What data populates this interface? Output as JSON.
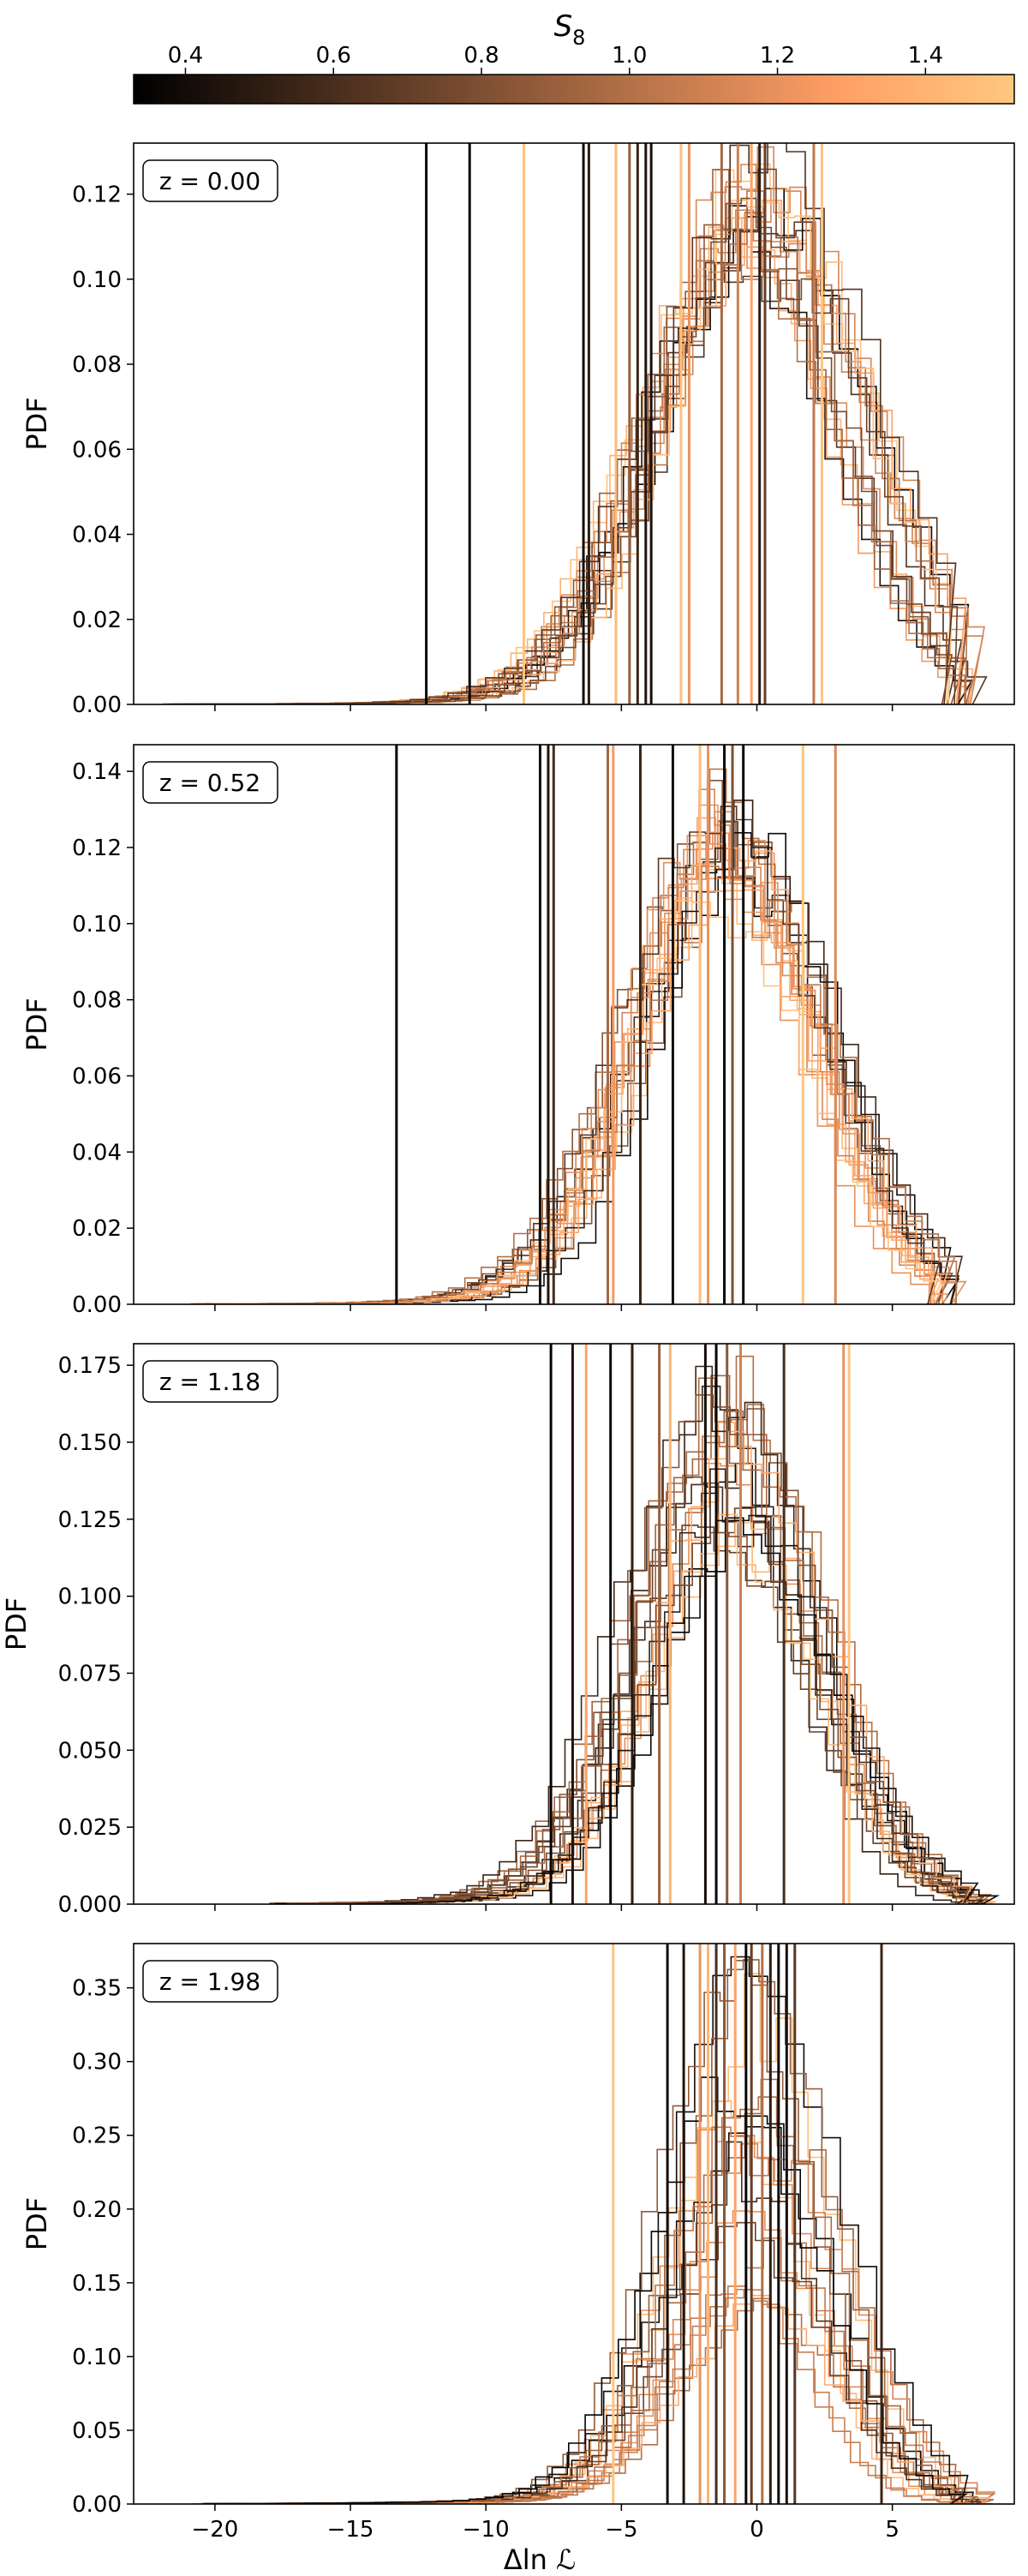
{
  "colorbar": {
    "label": "S",
    "label_subscript": "8",
    "range": [
      0.33,
      1.52
    ],
    "ticks": [
      0.4,
      0.6,
      0.8,
      1.0,
      1.2,
      1.4
    ],
    "tick_labels": [
      "0.4",
      "0.6",
      "0.8",
      "1.0",
      "1.2",
      "1.4"
    ],
    "colormap": "copper"
  },
  "chart_data": [
    {
      "type": "histogram",
      "annotation": "z = 0.00",
      "ylabel": "PDF",
      "xlabel": "",
      "xlim": [
        -23,
        9.5
      ],
      "ylim": [
        0,
        0.132
      ],
      "yticks": [
        0.0,
        0.02,
        0.04,
        0.06,
        0.08,
        0.1,
        0.12
      ],
      "ytick_labels": [
        "0.00",
        "0.02",
        "0.04",
        "0.06",
        "0.08",
        "0.10",
        "0.12"
      ],
      "n_histograms": 20,
      "histogram_center": 0.0,
      "histogram_sigma": 3.5,
      "histogram_peak_range": [
        0.1,
        0.125
      ],
      "left_tail_extent": -22,
      "right_extent": 8,
      "vertical_lines": [
        {
          "x": -12.2,
          "s8": 0.35
        },
        {
          "x": -10.6,
          "s8": 0.38
        },
        {
          "x": -8.6,
          "s8": 1.5
        },
        {
          "x": -6.4,
          "s8": 0.4
        },
        {
          "x": -6.2,
          "s8": 0.5
        },
        {
          "x": -5.2,
          "s8": 1.45
        },
        {
          "x": -4.7,
          "s8": 0.9
        },
        {
          "x": -4.4,
          "s8": 0.55
        },
        {
          "x": -4.1,
          "s8": 0.45
        },
        {
          "x": -3.9,
          "s8": 0.42
        },
        {
          "x": -2.8,
          "s8": 1.48
        },
        {
          "x": -2.5,
          "s8": 1.2
        },
        {
          "x": -1.3,
          "s8": 0.95
        },
        {
          "x": -0.7,
          "s8": 1.1
        },
        {
          "x": -0.2,
          "s8": 1.3
        },
        {
          "x": 0.1,
          "s8": 0.5
        },
        {
          "x": 0.3,
          "s8": 0.7
        },
        {
          "x": 2.1,
          "s8": 1.05
        },
        {
          "x": 2.4,
          "s8": 1.5
        }
      ]
    },
    {
      "type": "histogram",
      "annotation": "z = 0.52",
      "ylabel": "PDF",
      "xlabel": "",
      "xlim": [
        -23,
        9.5
      ],
      "ylim": [
        0,
        0.147
      ],
      "yticks": [
        0.0,
        0.02,
        0.04,
        0.06,
        0.08,
        0.1,
        0.12,
        0.14
      ],
      "ytick_labels": [
        "0.00",
        "0.02",
        "0.04",
        "0.06",
        "0.08",
        "0.10",
        "0.12",
        "0.14"
      ],
      "n_histograms": 20,
      "histogram_center": -0.8,
      "histogram_sigma": 3.3,
      "histogram_peak_range": [
        0.105,
        0.128
      ],
      "left_tail_extent": -21,
      "right_extent": 7.5,
      "vertical_lines": [
        {
          "x": -13.3,
          "s8": 0.35
        },
        {
          "x": -8.0,
          "s8": 0.42
        },
        {
          "x": -7.7,
          "s8": 0.45
        },
        {
          "x": -7.5,
          "s8": 0.6
        },
        {
          "x": -5.5,
          "s8": 0.95
        },
        {
          "x": -5.3,
          "s8": 1.25
        },
        {
          "x": -4.3,
          "s8": 0.55
        },
        {
          "x": -3.1,
          "s8": 0.4
        },
        {
          "x": -2.1,
          "s8": 1.45
        },
        {
          "x": -1.8,
          "s8": 1.2
        },
        {
          "x": -1.2,
          "s8": 0.38
        },
        {
          "x": -0.9,
          "s8": 0.8
        },
        {
          "x": -0.5,
          "s8": 0.36
        },
        {
          "x": 1.7,
          "s8": 1.5
        },
        {
          "x": 2.9,
          "s8": 1.15
        }
      ]
    },
    {
      "type": "histogram",
      "annotation": "z = 1.18",
      "ylabel": "PDF",
      "xlabel": "",
      "xlim": [
        -23,
        9.5
      ],
      "ylim": [
        0,
        0.182
      ],
      "yticks": [
        0.0,
        0.025,
        0.05,
        0.075,
        0.1,
        0.125,
        0.15,
        0.175
      ],
      "ytick_labels": [
        "0.000",
        "0.025",
        "0.050",
        "0.075",
        "0.100",
        "0.125",
        "0.150",
        "0.175"
      ],
      "n_histograms": 20,
      "histogram_center": -0.8,
      "histogram_sigma": 3.0,
      "histogram_peak_range": [
        0.11,
        0.165
      ],
      "left_tail_extent": -18,
      "right_extent": 8.5,
      "vertical_lines": [
        {
          "x": -7.6,
          "s8": 0.35
        },
        {
          "x": -6.8,
          "s8": 0.45
        },
        {
          "x": -6.3,
          "s8": 1.3
        },
        {
          "x": -5.4,
          "s8": 0.38
        },
        {
          "x": -4.6,
          "s8": 0.5
        },
        {
          "x": -3.6,
          "s8": 0.9
        },
        {
          "x": -3.2,
          "s8": 1.4
        },
        {
          "x": -1.9,
          "s8": 0.42
        },
        {
          "x": -1.5,
          "s8": 0.36
        },
        {
          "x": -1.1,
          "s8": 0.85
        },
        {
          "x": -0.6,
          "s8": 1.1
        },
        {
          "x": 1.0,
          "s8": 0.6
        },
        {
          "x": 3.2,
          "s8": 1.2
        },
        {
          "x": 3.4,
          "s8": 1.5
        }
      ]
    },
    {
      "type": "histogram",
      "annotation": "z = 1.98",
      "ylabel": "PDF",
      "xlabel": "Δln ℒ",
      "xlim": [
        -23,
        9.5
      ],
      "ylim": [
        0,
        0.38
      ],
      "yticks": [
        0.0,
        0.05,
        0.1,
        0.15,
        0.2,
        0.25,
        0.3,
        0.35
      ],
      "ytick_labels": [
        "0.00",
        "0.05",
        "0.10",
        "0.15",
        "0.20",
        "0.25",
        "0.30",
        "0.35"
      ],
      "xticks": [
        -20,
        -15,
        -10,
        -5,
        0,
        5
      ],
      "xtick_labels": [
        "−20",
        "−15",
        "−10",
        "−5",
        "0",
        "5"
      ],
      "n_histograms": 20,
      "histogram_center": 0.0,
      "histogram_sigma": 2.7,
      "histogram_peak_range": [
        0.12,
        0.36
      ],
      "left_tail_extent": -21,
      "right_extent": 8.3,
      "vertical_lines": [
        {
          "x": -5.3,
          "s8": 1.5
        },
        {
          "x": -3.3,
          "s8": 0.4
        },
        {
          "x": -2.7,
          "s8": 0.45
        },
        {
          "x": -2.1,
          "s8": 1.2
        },
        {
          "x": -1.8,
          "s8": 1.4
        },
        {
          "x": -1.5,
          "s8": 0.6
        },
        {
          "x": -1.2,
          "s8": 0.85
        },
        {
          "x": -0.8,
          "s8": 1.3
        },
        {
          "x": -0.4,
          "s8": 0.36
        },
        {
          "x": -0.2,
          "s8": 0.7
        },
        {
          "x": 0.2,
          "s8": 1.0
        },
        {
          "x": 0.5,
          "s8": 0.5
        },
        {
          "x": 0.8,
          "s8": 0.38
        },
        {
          "x": 1.1,
          "s8": 0.42
        },
        {
          "x": 1.4,
          "s8": 0.65
        },
        {
          "x": 4.6,
          "s8": 0.55
        }
      ]
    }
  ]
}
